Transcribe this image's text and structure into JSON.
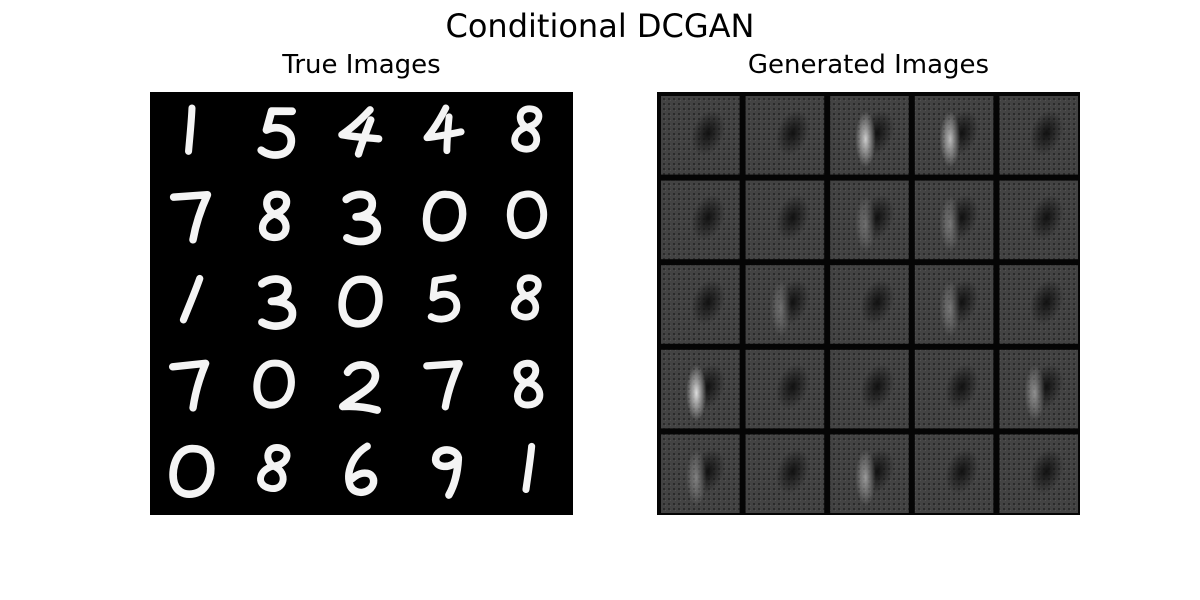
{
  "figure": {
    "title": "Conditional DCGAN"
  },
  "panels": {
    "true_images": {
      "title": "True Images",
      "grid_rows": 5,
      "grid_cols": 5,
      "digits": [
        "1",
        "5",
        "4",
        "4",
        "8",
        "7",
        "8",
        "3",
        "0",
        "0",
        "1",
        "3",
        "0",
        "5",
        "8",
        "7",
        "0",
        "2",
        "7",
        "8",
        "0",
        "8",
        "6",
        "9",
        "1"
      ]
    },
    "generated_images": {
      "title": "Generated Images",
      "grid_rows": 5,
      "grid_cols": 5,
      "tile_highlight": [
        0.15,
        0.2,
        0.9,
        0.8,
        0.2,
        0.2,
        0.2,
        0.35,
        0.4,
        0.2,
        0.2,
        0.35,
        0.3,
        0.4,
        0.3,
        1.0,
        0.25,
        0.25,
        0.3,
        0.55,
        0.45,
        0.3,
        0.6,
        0.3,
        0.3
      ]
    }
  },
  "colors": {
    "background": "#ffffff",
    "panel_background": "#000000",
    "digit_stroke": "#f4f4f4",
    "generated_tile": "#3c3c3c",
    "generated_grid": "#050505"
  }
}
